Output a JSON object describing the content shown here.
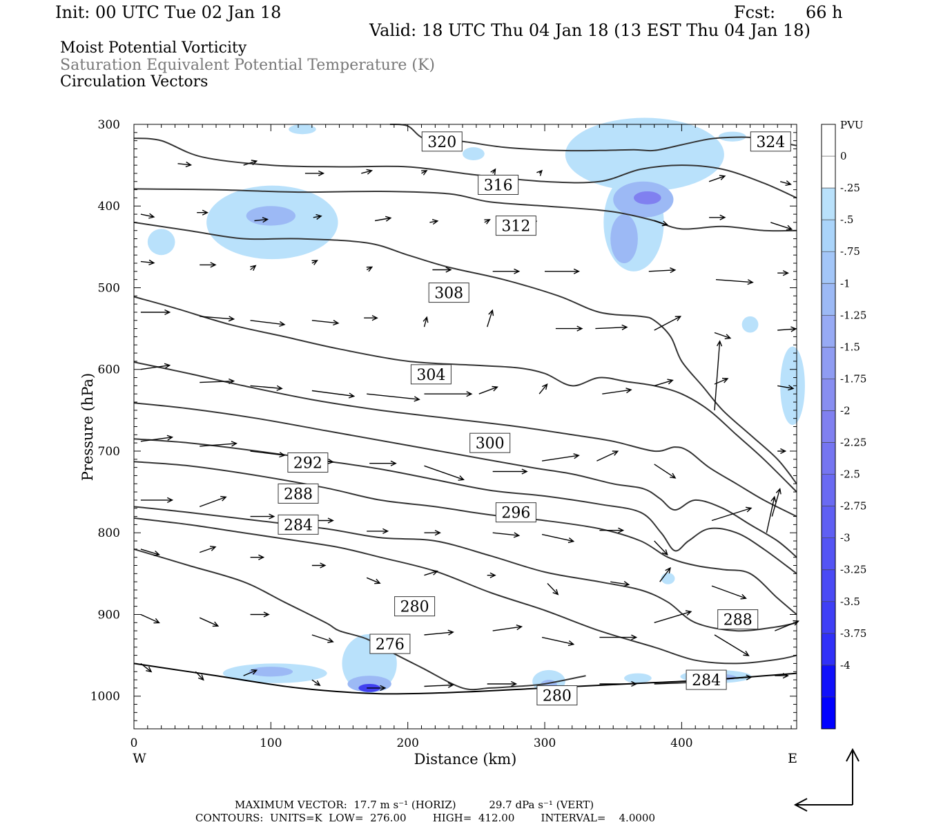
{
  "header": {
    "init": "Init: 00 UTC Tue 02 Jan 18",
    "fcst_label": "Fcst:",
    "fcst_value": "66 h",
    "valid": "Valid: 18 UTC Thu 04 Jan 18 (13 EST Thu 04 Jan 18)"
  },
  "fields": {
    "line1": "Moist Potential Vorticity",
    "line2": "Saturation Equivalent Potential Temperature (K)",
    "line3": "Circulation Vectors"
  },
  "colors": {
    "contour": "#333333",
    "field_label_gray": "#777777",
    "shade_light": "#b9e1fb",
    "shade_mid": "#9cb9f5",
    "shade_dark": "#8080f0",
    "shade_deep": "#4040f0"
  },
  "chart_data": {
    "type": "cross-section",
    "xlabel": "Distance (km)",
    "ylabel": "Pressure (hPa)",
    "x_left_label": "W",
    "x_right_label": "E",
    "xlim": [
      0,
      484
    ],
    "ylim": [
      1040,
      300
    ],
    "x_ticks": [
      0,
      100,
      200,
      300,
      400
    ],
    "y_ticks": [
      300,
      400,
      500,
      600,
      700,
      800,
      900,
      1000
    ],
    "colorbar": {
      "unit": "PVU",
      "labels": [
        "0",
        "-.25",
        "-.5",
        "-.75",
        "-1",
        "-1.25",
        "-1.5",
        "-1.75",
        "-2",
        "-2.25",
        "-2.5",
        "-2.75",
        "-3",
        "-3.25",
        "-3.5",
        "-3.75",
        "-4"
      ],
      "colors": [
        "#ffffff",
        "#ffffff",
        "#b9e1fb",
        "#aad4fa",
        "#a3c6f8",
        "#9cb9f5",
        "#97aaf4",
        "#8f9cf2",
        "#888ef1",
        "#8080f0",
        "#7575f1",
        "#6a6af2",
        "#5f5ff3",
        "#5454f4",
        "#4a4af5",
        "#3f3ff6",
        "#3030f8",
        "#1010fb",
        "#0000ff"
      ]
    },
    "contour_labels": [
      {
        "text": "320",
        "x": 225,
        "p": 321
      },
      {
        "text": "324",
        "x": 465,
        "p": 321
      },
      {
        "text": "316",
        "x": 266,
        "p": 374
      },
      {
        "text": "312",
        "x": 279,
        "p": 424
      },
      {
        "text": "308",
        "x": 230,
        "p": 506
      },
      {
        "text": "304",
        "x": 217,
        "p": 606
      },
      {
        "text": "300",
        "x": 260,
        "p": 690
      },
      {
        "text": "296",
        "x": 279,
        "p": 775
      },
      {
        "text": "292",
        "x": 127,
        "p": 714
      },
      {
        "text": "288",
        "x": 120,
        "p": 752
      },
      {
        "text": "284",
        "x": 120,
        "p": 790
      },
      {
        "text": "280",
        "x": 205,
        "p": 890
      },
      {
        "text": "276",
        "x": 187,
        "p": 936
      },
      {
        "text": "288",
        "x": 441,
        "p": 906
      },
      {
        "text": "284",
        "x": 418,
        "p": 980
      },
      {
        "text": "280",
        "x": 309,
        "p": 999
      }
    ],
    "isentropes": [
      {
        "value": 320,
        "points": [
          [
            187,
            300
          ],
          [
            200,
            302
          ],
          [
            213,
            318
          ],
          [
            240,
            321
          ],
          [
            270,
            328
          ],
          [
            310,
            332
          ],
          [
            340,
            332
          ],
          [
            365,
            331
          ],
          [
            380,
            332
          ],
          [
            400,
            325
          ],
          [
            420,
            318
          ],
          [
            435,
            316
          ],
          [
            450,
            316
          ],
          [
            465,
            320
          ],
          [
            484,
            326
          ]
        ]
      },
      {
        "value": 316,
        "points": [
          [
            0,
            317
          ],
          [
            20,
            320
          ],
          [
            50,
            340
          ],
          [
            100,
            350
          ],
          [
            150,
            352
          ],
          [
            200,
            352
          ],
          [
            250,
            362
          ],
          [
            300,
            370
          ],
          [
            340,
            370
          ],
          [
            370,
            355
          ],
          [
            400,
            350
          ],
          [
            430,
            355
          ],
          [
            460,
            372
          ],
          [
            484,
            390
          ]
        ]
      },
      {
        "value": 312,
        "points": [
          [
            0,
            379
          ],
          [
            60,
            380
          ],
          [
            120,
            383
          ],
          [
            180,
            382
          ],
          [
            230,
            385
          ],
          [
            260,
            395
          ],
          [
            300,
            400
          ],
          [
            340,
            405
          ],
          [
            360,
            410
          ],
          [
            380,
            418
          ],
          [
            400,
            428
          ],
          [
            430,
            425
          ],
          [
            460,
            430
          ],
          [
            484,
            430
          ]
        ]
      },
      {
        "value": 308,
        "points": [
          [
            0,
            420
          ],
          [
            40,
            430
          ],
          [
            80,
            440
          ],
          [
            120,
            440
          ],
          [
            170,
            445
          ],
          [
            200,
            460
          ],
          [
            230,
            475
          ],
          [
            270,
            490
          ],
          [
            310,
            510
          ],
          [
            340,
            530
          ],
          [
            370,
            535
          ],
          [
            380,
            540
          ],
          [
            392,
            560
          ],
          [
            400,
            590
          ],
          [
            415,
            620
          ],
          [
            430,
            650
          ],
          [
            450,
            680
          ],
          [
            470,
            710
          ],
          [
            484,
            740
          ]
        ]
      },
      {
        "value": 304,
        "points": [
          [
            0,
            511
          ],
          [
            30,
            525
          ],
          [
            70,
            545
          ],
          [
            110,
            560
          ],
          [
            150,
            575
          ],
          [
            200,
            590
          ],
          [
            250,
            595
          ],
          [
            280,
            598
          ],
          [
            300,
            605
          ],
          [
            320,
            620
          ],
          [
            340,
            610
          ],
          [
            360,
            615
          ],
          [
            380,
            620
          ],
          [
            400,
            630
          ],
          [
            420,
            650
          ],
          [
            440,
            680
          ],
          [
            460,
            710
          ],
          [
            484,
            750
          ]
        ]
      },
      {
        "value": 300,
        "points": [
          [
            0,
            591
          ],
          [
            40,
            605
          ],
          [
            80,
            620
          ],
          [
            130,
            637
          ],
          [
            180,
            650
          ],
          [
            230,
            660
          ],
          [
            280,
            670
          ],
          [
            320,
            680
          ],
          [
            350,
            688
          ],
          [
            380,
            700
          ],
          [
            395,
            695
          ],
          [
            405,
            700
          ],
          [
            420,
            720
          ],
          [
            440,
            740
          ],
          [
            460,
            760
          ],
          [
            484,
            780
          ]
        ]
      },
      {
        "value": 296,
        "points": [
          [
            0,
            641
          ],
          [
            40,
            648
          ],
          [
            90,
            660
          ],
          [
            140,
            675
          ],
          [
            190,
            690
          ],
          [
            240,
            705
          ],
          [
            290,
            720
          ],
          [
            320,
            728
          ],
          [
            350,
            740
          ],
          [
            372,
            746
          ],
          [
            384,
            758
          ],
          [
            395,
            772
          ],
          [
            410,
            760
          ],
          [
            430,
            770
          ],
          [
            450,
            790
          ],
          [
            470,
            810
          ],
          [
            484,
            830
          ]
        ]
      },
      {
        "value": 292,
        "points": [
          [
            0,
            685
          ],
          [
            40,
            690
          ],
          [
            90,
            700
          ],
          [
            140,
            712
          ],
          [
            180,
            722
          ],
          [
            220,
            735
          ],
          [
            260,
            748
          ],
          [
            300,
            755
          ],
          [
            340,
            765
          ],
          [
            370,
            775
          ],
          [
            385,
            800
          ],
          [
            395,
            822
          ],
          [
            405,
            810
          ],
          [
            420,
            795
          ],
          [
            440,
            800
          ],
          [
            460,
            820
          ],
          [
            484,
            850
          ]
        ]
      },
      {
        "value": 288,
        "points": [
          [
            0,
            713
          ],
          [
            40,
            718
          ],
          [
            90,
            730
          ],
          [
            140,
            745
          ],
          [
            180,
            760
          ],
          [
            220,
            768
          ],
          [
            260,
            778
          ],
          [
            300,
            785
          ],
          [
            340,
            795
          ],
          [
            370,
            810
          ],
          [
            390,
            830
          ],
          [
            410,
            840
          ],
          [
            430,
            845
          ],
          [
            450,
            850
          ],
          [
            470,
            880
          ],
          [
            484,
            900
          ]
        ]
      },
      {
        "value": 284,
        "points": [
          [
            0,
            768
          ],
          [
            40,
            775
          ],
          [
            90,
            785
          ],
          [
            140,
            795
          ],
          [
            180,
            806
          ],
          [
            220,
            810
          ],
          [
            260,
            828
          ],
          [
            300,
            848
          ],
          [
            340,
            860
          ],
          [
            370,
            870
          ],
          [
            390,
            885
          ],
          [
            410,
            910
          ],
          [
            440,
            920
          ],
          [
            470,
            915
          ],
          [
            484,
            910
          ]
        ]
      },
      {
        "value": 280,
        "points": [
          [
            0,
            782
          ],
          [
            40,
            790
          ],
          [
            80,
            800
          ],
          [
            120,
            810
          ],
          [
            150,
            818
          ],
          [
            180,
            830
          ],
          [
            220,
            847
          ],
          [
            260,
            873
          ],
          [
            300,
            895
          ],
          [
            340,
            920
          ],
          [
            380,
            940
          ],
          [
            410,
            956
          ],
          [
            440,
            960
          ],
          [
            470,
            955
          ],
          [
            484,
            950
          ]
        ]
      },
      {
        "value": 276,
        "points": [
          [
            0,
            820
          ],
          [
            40,
            840
          ],
          [
            80,
            860
          ],
          [
            110,
            885
          ],
          [
            140,
            910
          ],
          [
            150,
            920
          ],
          [
            170,
            930
          ],
          [
            190,
            948
          ],
          [
            210,
            965
          ],
          [
            240,
            990
          ],
          [
            260,
            990
          ],
          [
            280,
            988
          ],
          [
            300,
            985
          ],
          [
            330,
            975
          ]
        ]
      }
    ],
    "ground_line": [
      [
        0,
        960
      ],
      [
        60,
        975
      ],
      [
        120,
        990
      ],
      [
        180,
        997
      ],
      [
        240,
        995
      ],
      [
        300,
        990
      ],
      [
        360,
        985
      ],
      [
        420,
        980
      ],
      [
        484,
        972
      ]
    ]
  },
  "footer": {
    "line1": "MAXIMUM VECTOR:  17.7 m s⁻¹ (HORIZ)          29.7 dPa s⁻¹ (VERT)",
    "line2": "CONTOURS:  UNITS=K  LOW=  276.00        HIGH=  412.00        INTERVAL=    4.0000"
  }
}
